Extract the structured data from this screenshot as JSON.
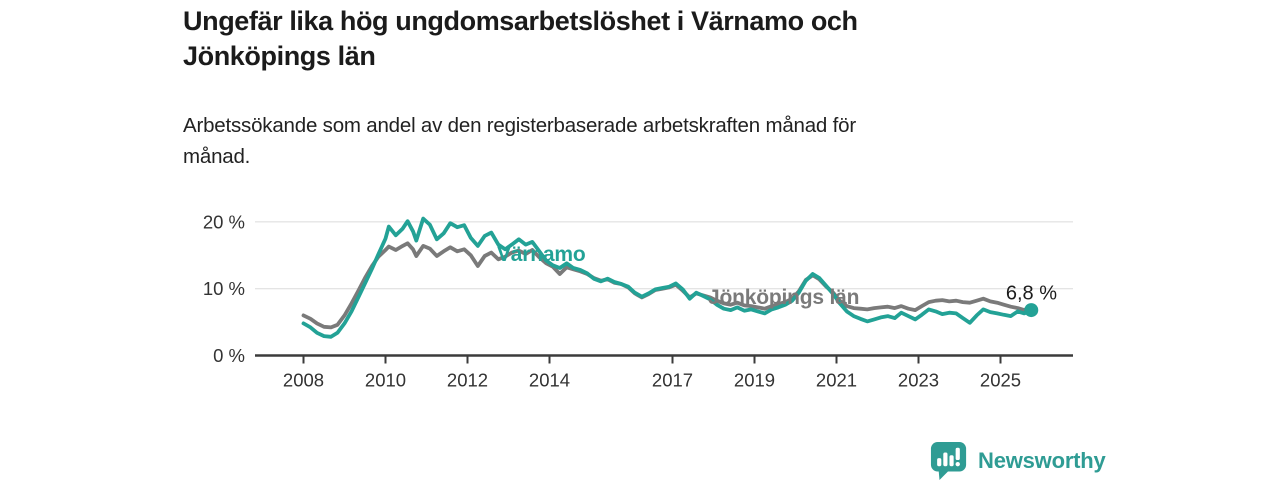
{
  "header": {
    "title_lines": [
      "Ungefär lika hög ungdomsarbetslöshet i Värnamo och",
      "Jönköpings län"
    ],
    "subtitle_lines": [
      "Arbetssökande som andel av den registerbaserade arbetskraften månad för",
      "månad."
    ]
  },
  "branding": {
    "name": "Newsworthy",
    "icon": "newsworthy-speech-bubble-bars-icon",
    "color": "#2f9c94"
  },
  "chart_data": {
    "type": "line",
    "title": "Ungefär lika hög ungdomsarbetslöshet i Värnamo och Jönköpings län",
    "subtitle": "Arbetssökande som andel av den registerbaserade arbetskraften månad för månad.",
    "unit": "%",
    "grid": "horizontal",
    "legend": "inline-labels",
    "x_axis": {
      "tick_values": [
        2008,
        2010,
        2012,
        2014,
        2017,
        2019,
        2021,
        2023,
        2025
      ],
      "tick_labels": [
        "2008",
        "2010",
        "2012",
        "2014",
        "2017",
        "2019",
        "2021",
        "2023",
        "2025"
      ],
      "range": [
        2007.8,
        2026.8
      ]
    },
    "y_axis": {
      "tick_values": [
        0,
        10,
        20
      ],
      "tick_labels": [
        "0 %",
        "10 %",
        "20 %"
      ],
      "range": [
        0,
        22
      ]
    },
    "colors": {
      "varnamo": "#23a296",
      "jonkopings_lan": "#7a7a7a",
      "grid": "#dbdbdb",
      "axis": "#3b3b3b",
      "tick_text": "#333333",
      "end_label_text": "#1c1c1c"
    },
    "series": [
      {
        "name": "Jönköpings län",
        "color": "#7a7a7a",
        "points": [
          [
            2008.0,
            6.0
          ],
          [
            2008.17,
            5.5
          ],
          [
            2008.33,
            4.8
          ],
          [
            2008.5,
            4.3
          ],
          [
            2008.67,
            4.2
          ],
          [
            2008.83,
            4.6
          ],
          [
            2009.0,
            6.0
          ],
          [
            2009.17,
            7.8
          ],
          [
            2009.33,
            9.6
          ],
          [
            2009.5,
            11.6
          ],
          [
            2009.67,
            13.4
          ],
          [
            2009.83,
            14.8
          ],
          [
            2010.0,
            15.8
          ],
          [
            2010.08,
            16.3
          ],
          [
            2010.25,
            15.8
          ],
          [
            2010.42,
            16.4
          ],
          [
            2010.54,
            16.8
          ],
          [
            2010.67,
            15.9
          ],
          [
            2010.75,
            14.9
          ],
          [
            2010.92,
            16.4
          ],
          [
            2011.08,
            16.0
          ],
          [
            2011.25,
            14.9
          ],
          [
            2011.42,
            15.6
          ],
          [
            2011.58,
            16.2
          ],
          [
            2011.75,
            15.6
          ],
          [
            2011.92,
            15.9
          ],
          [
            2012.08,
            15.0
          ],
          [
            2012.25,
            13.4
          ],
          [
            2012.42,
            14.9
          ],
          [
            2012.58,
            15.4
          ],
          [
            2012.75,
            14.4
          ],
          [
            2012.92,
            14.8
          ],
          [
            2013.08,
            15.4
          ],
          [
            2013.25,
            15.7
          ],
          [
            2013.42,
            15.2
          ],
          [
            2013.58,
            15.8
          ],
          [
            2013.75,
            14.7
          ],
          [
            2013.92,
            13.8
          ],
          [
            2014.08,
            13.3
          ],
          [
            2014.25,
            12.2
          ],
          [
            2014.42,
            13.2
          ],
          [
            2014.58,
            12.9
          ],
          [
            2014.75,
            12.6
          ],
          [
            2014.92,
            12.2
          ],
          [
            2015.08,
            11.6
          ],
          [
            2015.25,
            11.2
          ],
          [
            2015.42,
            11.4
          ],
          [
            2015.58,
            10.9
          ],
          [
            2015.75,
            10.7
          ],
          [
            2015.92,
            10.2
          ],
          [
            2016.08,
            9.3
          ],
          [
            2016.25,
            8.7
          ],
          [
            2016.42,
            9.2
          ],
          [
            2016.58,
            9.8
          ],
          [
            2016.75,
            10.0
          ],
          [
            2016.92,
            10.2
          ],
          [
            2017.08,
            10.6
          ],
          [
            2017.25,
            9.7
          ],
          [
            2017.42,
            8.7
          ],
          [
            2017.58,
            9.3
          ],
          [
            2017.75,
            9.0
          ],
          [
            2017.92,
            8.7
          ],
          [
            2018.08,
            8.2
          ],
          [
            2018.25,
            7.8
          ],
          [
            2018.42,
            7.6
          ],
          [
            2018.58,
            7.9
          ],
          [
            2018.75,
            7.5
          ],
          [
            2018.92,
            7.4
          ],
          [
            2019.08,
            7.2
          ],
          [
            2019.25,
            7.0
          ],
          [
            2019.42,
            7.4
          ],
          [
            2019.58,
            7.7
          ],
          [
            2019.75,
            8.0
          ],
          [
            2019.92,
            8.5
          ],
          [
            2020.08,
            9.6
          ],
          [
            2020.25,
            11.3
          ],
          [
            2020.42,
            12.0
          ],
          [
            2020.58,
            11.4
          ],
          [
            2020.75,
            10.3
          ],
          [
            2020.92,
            9.4
          ],
          [
            2021.08,
            8.2
          ],
          [
            2021.25,
            7.4
          ],
          [
            2021.42,
            7.1
          ],
          [
            2021.58,
            7.0
          ],
          [
            2021.75,
            6.9
          ],
          [
            2021.92,
            7.1
          ],
          [
            2022.08,
            7.2
          ],
          [
            2022.25,
            7.3
          ],
          [
            2022.42,
            7.1
          ],
          [
            2022.58,
            7.4
          ],
          [
            2022.75,
            7.0
          ],
          [
            2022.92,
            6.8
          ],
          [
            2023.08,
            7.4
          ],
          [
            2023.25,
            8.0
          ],
          [
            2023.42,
            8.2
          ],
          [
            2023.58,
            8.3
          ],
          [
            2023.75,
            8.1
          ],
          [
            2023.92,
            8.2
          ],
          [
            2024.08,
            8.0
          ],
          [
            2024.25,
            7.9
          ],
          [
            2024.42,
            8.2
          ],
          [
            2024.58,
            8.5
          ],
          [
            2024.75,
            8.1
          ],
          [
            2024.92,
            7.9
          ],
          [
            2025.08,
            7.6
          ],
          [
            2025.25,
            7.3
          ],
          [
            2025.42,
            7.1
          ],
          [
            2025.58,
            6.8
          ],
          [
            2025.75,
            7.3
          ]
        ]
      },
      {
        "name": "Värnamo",
        "color": "#23a296",
        "end_dot": true,
        "end_label": "6,8 %",
        "points": [
          [
            2008.0,
            4.8
          ],
          [
            2008.17,
            4.2
          ],
          [
            2008.33,
            3.4
          ],
          [
            2008.5,
            2.9
          ],
          [
            2008.67,
            2.8
          ],
          [
            2008.83,
            3.4
          ],
          [
            2009.0,
            4.8
          ],
          [
            2009.17,
            6.6
          ],
          [
            2009.33,
            8.6
          ],
          [
            2009.5,
            10.8
          ],
          [
            2009.67,
            13.0
          ],
          [
            2009.83,
            15.2
          ],
          [
            2010.0,
            17.5
          ],
          [
            2010.08,
            19.3
          ],
          [
            2010.25,
            18.0
          ],
          [
            2010.42,
            19.0
          ],
          [
            2010.54,
            20.1
          ],
          [
            2010.67,
            18.6
          ],
          [
            2010.75,
            17.2
          ],
          [
            2010.92,
            20.5
          ],
          [
            2011.08,
            19.6
          ],
          [
            2011.25,
            17.4
          ],
          [
            2011.42,
            18.3
          ],
          [
            2011.58,
            19.8
          ],
          [
            2011.75,
            19.2
          ],
          [
            2011.92,
            19.5
          ],
          [
            2012.08,
            17.6
          ],
          [
            2012.25,
            16.4
          ],
          [
            2012.42,
            17.9
          ],
          [
            2012.58,
            18.4
          ],
          [
            2012.75,
            16.6
          ],
          [
            2012.92,
            15.9
          ],
          [
            2013.08,
            16.6
          ],
          [
            2013.25,
            17.4
          ],
          [
            2013.42,
            16.6
          ],
          [
            2013.58,
            17.0
          ],
          [
            2013.75,
            15.6
          ],
          [
            2013.92,
            14.2
          ],
          [
            2014.08,
            13.5
          ],
          [
            2014.25,
            13.1
          ],
          [
            2014.42,
            13.8
          ],
          [
            2014.58,
            13.1
          ],
          [
            2014.75,
            12.8
          ],
          [
            2014.92,
            12.3
          ],
          [
            2015.08,
            11.5
          ],
          [
            2015.25,
            11.1
          ],
          [
            2015.42,
            11.5
          ],
          [
            2015.58,
            11.0
          ],
          [
            2015.75,
            10.7
          ],
          [
            2015.92,
            10.3
          ],
          [
            2016.08,
            9.4
          ],
          [
            2016.25,
            8.8
          ],
          [
            2016.42,
            9.3
          ],
          [
            2016.58,
            9.9
          ],
          [
            2016.75,
            10.1
          ],
          [
            2016.92,
            10.3
          ],
          [
            2017.08,
            10.8
          ],
          [
            2017.25,
            9.9
          ],
          [
            2017.42,
            8.5
          ],
          [
            2017.58,
            9.4
          ],
          [
            2017.75,
            8.9
          ],
          [
            2017.92,
            8.4
          ],
          [
            2018.08,
            7.6
          ],
          [
            2018.25,
            7.0
          ],
          [
            2018.42,
            6.8
          ],
          [
            2018.58,
            7.2
          ],
          [
            2018.75,
            6.7
          ],
          [
            2018.92,
            6.9
          ],
          [
            2019.08,
            6.6
          ],
          [
            2019.25,
            6.3
          ],
          [
            2019.42,
            6.9
          ],
          [
            2019.58,
            7.2
          ],
          [
            2019.75,
            7.6
          ],
          [
            2019.92,
            8.2
          ],
          [
            2020.08,
            9.4
          ],
          [
            2020.25,
            11.2
          ],
          [
            2020.42,
            12.2
          ],
          [
            2020.58,
            11.6
          ],
          [
            2020.75,
            10.4
          ],
          [
            2020.92,
            9.2
          ],
          [
            2021.08,
            7.8
          ],
          [
            2021.25,
            6.6
          ],
          [
            2021.42,
            5.9
          ],
          [
            2021.58,
            5.5
          ],
          [
            2021.75,
            5.1
          ],
          [
            2021.92,
            5.4
          ],
          [
            2022.08,
            5.7
          ],
          [
            2022.25,
            5.9
          ],
          [
            2022.42,
            5.6
          ],
          [
            2022.58,
            6.4
          ],
          [
            2022.75,
            5.9
          ],
          [
            2022.92,
            5.4
          ],
          [
            2023.08,
            6.1
          ],
          [
            2023.25,
            6.9
          ],
          [
            2023.42,
            6.6
          ],
          [
            2023.58,
            6.2
          ],
          [
            2023.75,
            6.4
          ],
          [
            2023.92,
            6.3
          ],
          [
            2024.08,
            5.6
          ],
          [
            2024.25,
            4.9
          ],
          [
            2024.42,
            6.0
          ],
          [
            2024.58,
            6.9
          ],
          [
            2024.75,
            6.5
          ],
          [
            2024.92,
            6.3
          ],
          [
            2025.08,
            6.1
          ],
          [
            2025.25,
            5.9
          ],
          [
            2025.42,
            6.6
          ],
          [
            2025.58,
            6.3
          ],
          [
            2025.75,
            6.8
          ]
        ]
      }
    ]
  }
}
